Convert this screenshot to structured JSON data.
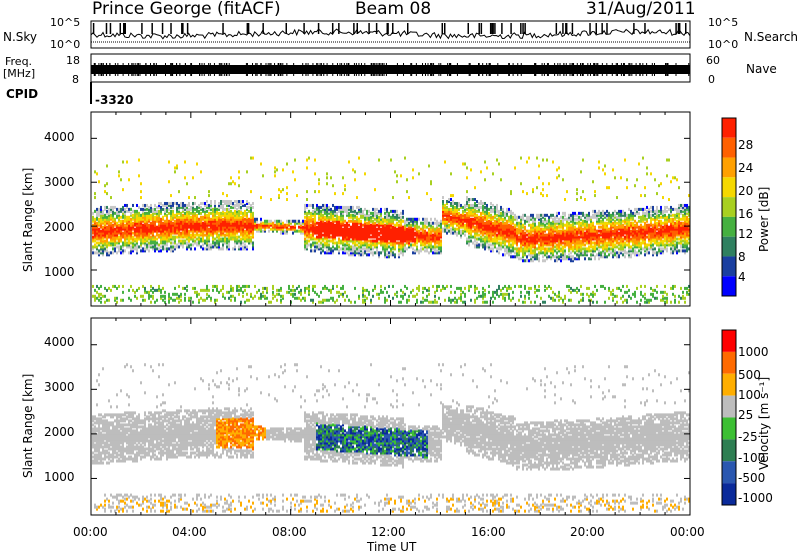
{
  "header": {
    "site": "Prince George (fitACF)",
    "beam": "Beam 08",
    "date": "31/Aug/2011"
  },
  "left_labels": {
    "nsky": "N.Sky",
    "freq": "Freq.",
    "mhz": "[MHz]",
    "cpid_label": "CPID"
  },
  "right_labels": {
    "nsearch": "N.Search",
    "nave": "Nave"
  },
  "cpid_value": "-3320",
  "colors": {
    "power_scale": [
      "#0000ff",
      "#1a3fa0",
      "#2f8060",
      "#45b040",
      "#a8d020",
      "#f5d800",
      "#ffa000",
      "#ff6000",
      "#ff2000"
    ],
    "velocity_scale": [
      "#0a2a9a",
      "#2a57b0",
      "#2e7e52",
      "#3cbf33",
      "#bdbdbd",
      "#ffae00",
      "#ff6a00",
      "#ff0000"
    ]
  },
  "chart_data": [
    {
      "type": "line",
      "panel": "noise",
      "yticks_left": [
        "10^5",
        "10^0"
      ],
      "yticks_right": [
        "10^5",
        "10^0"
      ],
      "ylabel_left": "N.Sky",
      "ylabel_right": "N.Search",
      "x": [
        "00:00",
        "04:00",
        "08:00",
        "12:00",
        "16:00",
        "20:00",
        "00:00"
      ]
    },
    {
      "type": "line",
      "panel": "frequency",
      "yticks_left": [
        "18",
        "8"
      ],
      "yticks_right": [
        "60",
        "0"
      ],
      "ylabel_left": "Freq. [MHz]",
      "ylabel_right": "Nave",
      "x": [
        "00:00",
        "04:00",
        "08:00",
        "12:00",
        "16:00",
        "20:00",
        "00:00"
      ]
    },
    {
      "type": "heatmap",
      "panel": "power",
      "ylabel": "Slant Range [km]",
      "yticks": [
        "4000",
        "3000",
        "2000",
        "1000"
      ],
      "ylim": [
        180,
        4600
      ],
      "xlim": [
        0,
        24
      ],
      "colorbar_label": "Power [dB]",
      "colorbar_ticks": [
        "28",
        "24",
        "20",
        "16",
        "12",
        "8",
        "4"
      ],
      "colorbar_range": [
        0,
        32
      ]
    },
    {
      "type": "heatmap",
      "panel": "velocity",
      "ylabel": "Slant Range [km]",
      "yticks": [
        "4000",
        "3000",
        "2000",
        "1000"
      ],
      "ylim": [
        180,
        4600
      ],
      "xlim": [
        0,
        24
      ],
      "xticks": [
        "00:00",
        "04:00",
        "08:00",
        "12:00",
        "16:00",
        "20:00",
        "00:00"
      ],
      "xlabel": "Time UT",
      "colorbar_label": "Velocity [m s⁻¹]",
      "colorbar_ticks": [
        "1000",
        "500",
        "100",
        "25",
        "-25",
        "-100",
        "-500",
        "-1000"
      ]
    }
  ]
}
